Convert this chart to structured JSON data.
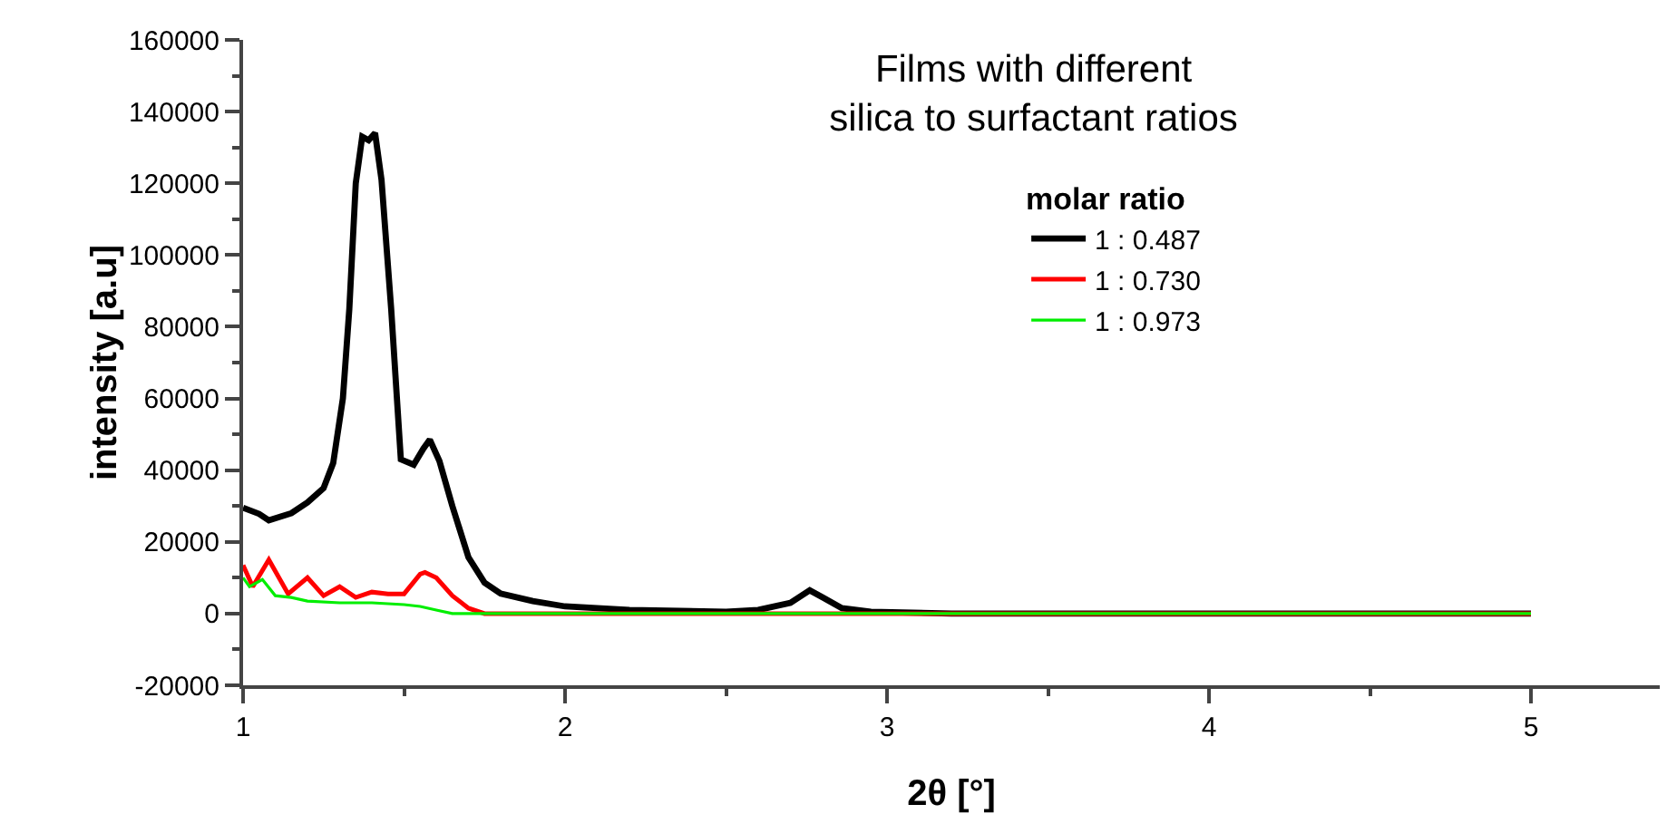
{
  "chart_data": {
    "type": "line",
    "title": "Films with different\nsilica to surfactant ratios",
    "xlabel": "2θ [°]",
    "ylabel": "intensity [a.u]",
    "legend_title": "molar ratio",
    "legend": "top right",
    "grid": false,
    "marker": "none",
    "line_style": "solid",
    "xlim": [
      1,
      5.4
    ],
    "xticks": [
      1,
      2,
      3,
      4,
      5
    ],
    "ylim": [
      -20000,
      160000
    ],
    "yticks": [
      -20000,
      0,
      20000,
      40000,
      60000,
      80000,
      100000,
      120000,
      140000,
      160000
    ],
    "series": [
      {
        "name": "1 : 0.487",
        "color": "#000000",
        "x": [
          1.0,
          1.05,
          1.08,
          1.15,
          1.2,
          1.25,
          1.28,
          1.31,
          1.33,
          1.35,
          1.37,
          1.39,
          1.41,
          1.43,
          1.46,
          1.49,
          1.53,
          1.56,
          1.58,
          1.61,
          1.65,
          1.7,
          1.75,
          1.8,
          1.9,
          2.0,
          2.2,
          2.5,
          2.6,
          2.7,
          2.76,
          2.8,
          2.86,
          2.95,
          3.2,
          5.0
        ],
        "values": [
          29500,
          27800,
          26000,
          28000,
          31000,
          35000,
          42000,
          60000,
          85000,
          120000,
          133000,
          132000,
          134000,
          121000,
          85000,
          43000,
          41500,
          46000,
          48500,
          42500,
          30000,
          15700,
          8600,
          5600,
          3500,
          2000,
          1000,
          500,
          1000,
          3000,
          6500,
          4500,
          1500,
          500,
          0,
          0
        ]
      },
      {
        "name": "1 : 0.730",
        "color": "#ff0000",
        "x": [
          1.0,
          1.03,
          1.08,
          1.14,
          1.2,
          1.25,
          1.3,
          1.35,
          1.4,
          1.45,
          1.5,
          1.55,
          1.565,
          1.6,
          1.65,
          1.7,
          1.75,
          5.0
        ],
        "values": [
          13500,
          7500,
          15000,
          5500,
          10000,
          5000,
          7500,
          4500,
          6000,
          5500,
          5500,
          11000,
          11500,
          10000,
          5000,
          1500,
          0,
          0
        ]
      },
      {
        "name": "1 : 0.973",
        "color": "#00ee00",
        "x": [
          1.0,
          1.02,
          1.06,
          1.1,
          1.15,
          1.2,
          1.3,
          1.4,
          1.5,
          1.55,
          1.6,
          1.65,
          5.0
        ],
        "values": [
          10000,
          7500,
          9500,
          5000,
          4500,
          3500,
          3000,
          3000,
          2500,
          2000,
          1000,
          0,
          0
        ]
      }
    ]
  }
}
